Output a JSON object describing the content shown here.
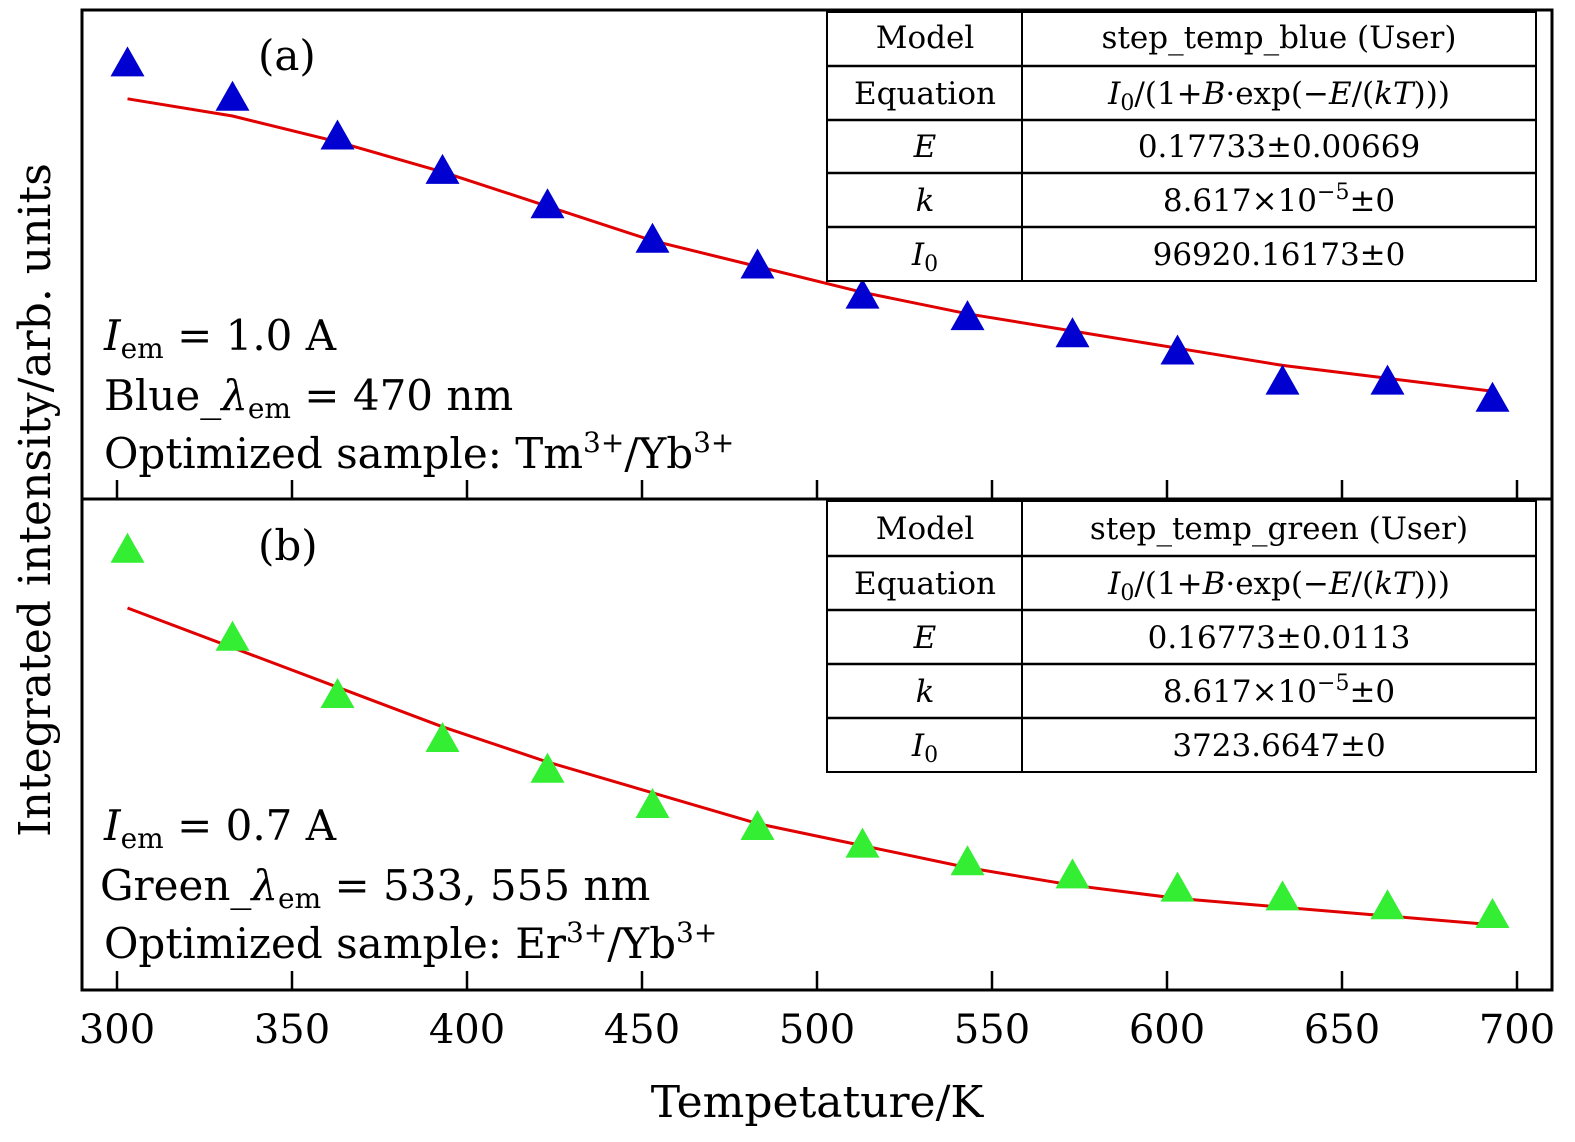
{
  "chart_data": {
    "type": "scatter",
    "xlabel": "Tempetature/K",
    "ylabel": "Integrated intensity/arb. units",
    "xlim": [
      290,
      710
    ],
    "xticks": [
      300,
      350,
      400,
      450,
      500,
      550,
      600,
      650,
      700
    ],
    "grid": false,
    "panels": [
      {
        "label": "(a)",
        "marker_color": "#0000d0",
        "fit_color": "#e00000",
        "ylim": [
          0,
          100
        ],
        "series": [
          {
            "kind": "points",
            "x": [
              303,
              333,
              363,
              393,
              423,
              453,
              483,
              513,
              543,
              573,
              603,
              633,
              663,
              693
            ],
            "y": [
              92,
              84,
              75,
              67,
              59,
              51,
              45,
              38,
              33,
              29,
              25,
              18,
              18,
              14
            ]
          },
          {
            "kind": "fit",
            "x": [
              303,
              333,
              363,
              393,
              423,
              453,
              483,
              513,
              543,
              573,
              603,
              633,
              663,
              693
            ],
            "y": [
              84,
              80,
              74,
              67,
              59,
              51,
              45,
              39,
              34,
              30,
              26,
              22,
              19,
              16
            ]
          }
        ],
        "annotations": {
          "line1": {
            "sym": "I",
            "sub": "em",
            "rest": " = 1.0 A"
          },
          "line2": {
            "pre": "Blue_",
            "sym": "λ",
            "sub": "em",
            "rest": " = 470 nm"
          },
          "line3": {
            "pre": "Optimized sample: Tm",
            "sup1": "3+",
            "mid": "/Yb",
            "sup2": "3+"
          }
        },
        "table": {
          "model_label": "Model",
          "model_value": "step_temp_blue (User)",
          "equation_label": "Equation",
          "equation": {
            "i": "I",
            "isub": "0",
            "a": "/(1+",
            "b": "B",
            "c": "·exp(−",
            "e": "E",
            "f": "/(",
            "kt": "kT",
            "g": ")))"
          },
          "e_label": "E",
          "e_value": "0.17733±0.00669",
          "k_label": "k",
          "k_value_pre": "8.617×10",
          "k_value_sup": "−5",
          "k_value_post": "±0",
          "i0_label": "I",
          "i0_sub": "0",
          "i0_value": "96920.16173±0"
        }
      },
      {
        "label": "(b)",
        "marker_color": "#33ee33",
        "fit_color": "#e00000",
        "ylim": [
          0,
          100
        ],
        "series": [
          {
            "kind": "points",
            "x": [
              303,
              333,
              363,
              393,
              423,
              453,
              483,
              513,
              543,
              573,
              603,
              633,
              663,
              693
            ],
            "y": [
              93,
              73,
              60,
              50,
              43,
              35,
              30,
              26,
              22,
              19,
              16,
              14,
              12,
              10
            ]
          },
          {
            "kind": "fit",
            "x": [
              303,
              333,
              363,
              393,
              423,
              453,
              483,
              513,
              543,
              573,
              603,
              633,
              663,
              693
            ],
            "y": [
              80,
              71,
              62,
              53,
              45,
              38,
              31,
              26,
              21,
              17,
              14,
              12,
              10,
              8
            ]
          }
        ],
        "annotations": {
          "line1": {
            "sym": "I",
            "sub": "em",
            "rest": " = 0.7 A"
          },
          "line2": {
            "pre": "Green_",
            "sym": "λ",
            "sub": "em",
            "rest": " = 533, 555 nm"
          },
          "line3": {
            "pre": "Optimized sample: Er",
            "sup1": "3+",
            "mid": "/Yb",
            "sup2": "3+"
          }
        },
        "table": {
          "model_label": "Model",
          "model_value": "step_temp_green (User)",
          "equation_label": "Equation",
          "equation": {
            "i": "I",
            "isub": "0",
            "a": "/(1+",
            "b": "B",
            "c": "·exp(−",
            "e": "E",
            "f": "/(",
            "kt": "kT",
            "g": ")))"
          },
          "e_label": "E",
          "e_value": "0.16773±0.0113",
          "k_label": "k",
          "k_value_pre": "8.617×10",
          "k_value_sup": "−5",
          "k_value_post": "±0",
          "i0_label": "I",
          "i0_sub": "0",
          "i0_value": "3723.6647±0"
        }
      }
    ]
  }
}
